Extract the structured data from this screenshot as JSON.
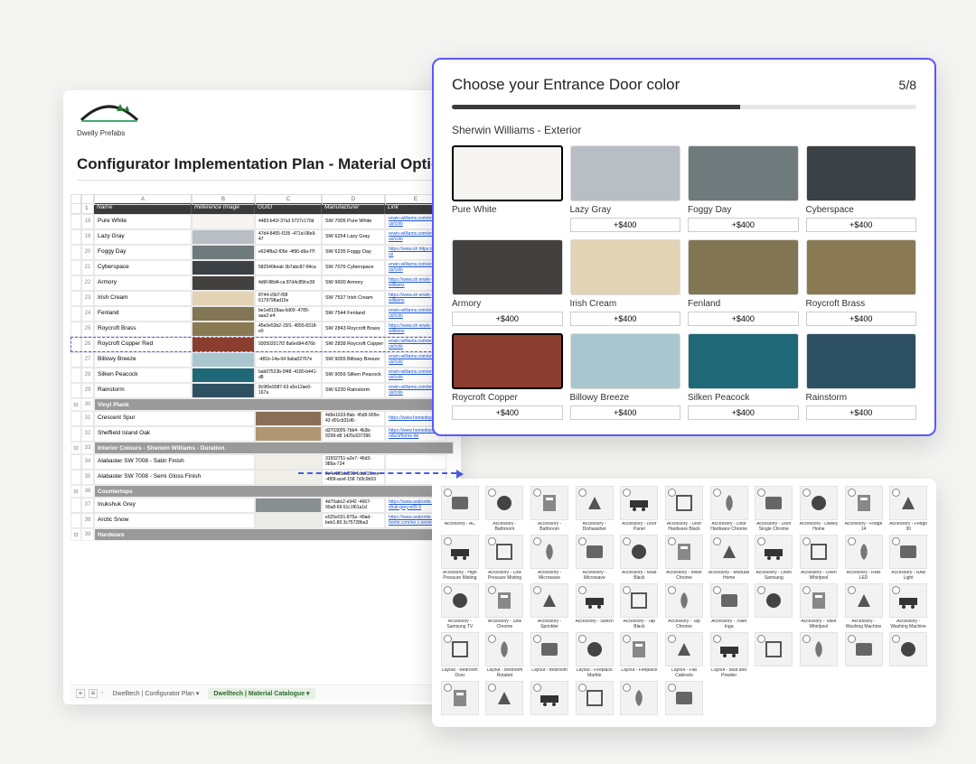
{
  "brand": {
    "name": "Dwelly Prefabs"
  },
  "sheet": {
    "title": "Configurator Implementation Plan - Material Options",
    "col_letters": [
      "",
      "",
      "A",
      "B",
      "C",
      "D",
      "E"
    ],
    "headers": [
      "Name",
      "Reference Image",
      "GUID",
      "Manufacturer",
      "Link"
    ],
    "rows": [
      {
        "rn": "18",
        "name": "Pure White",
        "color": "#f6f5f1",
        "guid": "4483-b41f-37a3\n5727c170d",
        "mfr": "SW 7005 Pure White",
        "link": "erwin-williams.com/en-us/colo"
      },
      {
        "rn": "19",
        "name": "Lazy Gray",
        "color": "#b8bec3",
        "guid": "47d4-8455-f105\n-471d-08e9-47",
        "mfr": "SW 6254 Lazy Gray",
        "link": "erwin-williams.com/en-us/colo"
      },
      {
        "rn": "20",
        "name": "Foggy Day",
        "color": "#6f7a7d",
        "guid": "e624f8a2-f05e\n-4f90-d9a-f7f",
        "mfr": "SW 6235 Foggy Day",
        "link": "https://www.sh\nhttps://en-us"
      },
      {
        "rn": "21",
        "name": "Cyberspace",
        "color": "#3c4146",
        "guid": "582540beab\n3b7abc87-84ca",
        "mfr": "SW 7076 Cyberspace",
        "link": "erwin-williams.com/en-us/colo"
      },
      {
        "rn": "22",
        "name": "Armory",
        "color": "#424140",
        "guid": "4d9f-88d4-ca\n87d4c85fce39",
        "mfr": "SW 9600 Armory",
        "link": "https://www.sh\nerwin-williams"
      },
      {
        "rn": "23",
        "name": "Irish Cream",
        "color": "#e2d3b5",
        "guid": "8744-c5b7-f08\n6179798ad15e",
        "mfr": "SW 7537 Irish Cream",
        "link": "https://www.sh\nerwin-williams"
      },
      {
        "rn": "24",
        "name": "Fenland",
        "color": "#817554",
        "guid": "be1e8128aa-6d09\n-4785-aaa2-e4",
        "mfr": "SW 7544 Fenland",
        "link": "erwin-williams.com/en-us/colo"
      },
      {
        "rn": "25",
        "name": "Roycroft Brass",
        "color": "#8a7a54",
        "guid": "45e0e53b2-15f1-\n4055-8318-e0",
        "mfr": "SW 2843 Roycroft Brass",
        "link": "https://www.sh\nerwin-williams"
      },
      {
        "rn": "26",
        "name": "Roycroft Copper Red",
        "color": "#8b3d2f",
        "guid": "930502017f2\n8a6ed94-876b",
        "mfr": "SW 2838 Roycroft Copper Red",
        "link": "erwin-williams.com/en-us/colo",
        "highlight": true
      },
      {
        "rn": "27",
        "name": "Billowy Breeze",
        "color": "#a9c6ce",
        "guid": "-481b-14a-04\n9aba02767e",
        "mfr": "SW 9055 Billowy Breeze",
        "link": "erwin-williams.com/en-us/colo"
      },
      {
        "rn": "28",
        "name": "Silken Peacock",
        "color": "#1e6877",
        "guid": "bab07523b-5f48\n-4180-b441-d8",
        "mfr": "SW 9059 Silken Peacock",
        "link": "erwin-williams.com/en-us/colo"
      },
      {
        "rn": "29",
        "name": "Rainstorm",
        "color": "#2d5162",
        "guid": "8c9f0e9387-63\na5e12ae0-167a",
        "mfr": "SW 6230 Rainstorm",
        "link": "erwin-williams.com/en-us/colo"
      }
    ],
    "section_vinyl": "Vinyl Plank",
    "vinyl_rows": [
      {
        "rn": "31",
        "name": "Crescent Spur",
        "color": "#8a6f56",
        "guid": "4d9e1633-ffab-\n45d9-905e-43\nd01cb31d6-",
        "link": "https://www.homedepot.ca/pr"
      },
      {
        "rn": "32",
        "name": "Sheffield Island Oak",
        "color": "#b09672",
        "guid": "d3703005-7bb4-\n4b3b-9298-d8\n1425c637396",
        "link": "https://www.homedepot.ca/pr\noduct/home-de"
      }
    ],
    "section_interior": "Interior Colours - Sherwin Williams - Duration",
    "interior_rows": [
      {
        "rn": "34",
        "name": "Alabaster SW 7008 - Satin Finish",
        "color": "#efeee7",
        "guid": "31502751-a2e7-\n46d3-989a-724"
      },
      {
        "rn": "35",
        "name": "Alabaster SW 7008 - Semi Gloss Finish",
        "color": "#efeee7",
        "guid": "9c4e195dd893\n1da015eee-\n-4f09-acef-158\n7d3c9b53"
      }
    ],
    "section_countertops": "Countertops",
    "countertop_rows": [
      {
        "rn": "37",
        "name": "Inukshuk Grey",
        "color": "#898f91",
        "guid": "4d70abc2-e942\n-4667-90a8-69\n61c1f61a1d",
        "link": "https://www.araborite.com/en\nshuk-grey-e05\n6"
      },
      {
        "rn": "38",
        "name": "Arctic Snow",
        "color": "#ecece9",
        "guid": "e025e031-875a\n-49ad-beb1-80\n3c75728ba3",
        "link": "https://www.araborite.com/en\nborite.com/en\nc-snow-e937"
      }
    ],
    "section_hardware": "Hardware",
    "tabs": {
      "add": "+",
      "menu": "≡",
      "tab1": "Dwelltech | Configurator Plan",
      "tab2": "Dwelltech | Material Catalogue"
    }
  },
  "configurator": {
    "title": "Choose your Entrance Door color",
    "step": "5/8",
    "progress_pct": 62,
    "subtitle": "Sherwin Williams - Exterior",
    "swatches": [
      {
        "label": "Pure White",
        "color": "#f6f5f1",
        "price": "",
        "selected": true
      },
      {
        "label": "Lazy Gray",
        "color": "#b8bec3",
        "price": "+$400"
      },
      {
        "label": "Foggy Day",
        "color": "#6f7a7d",
        "price": "+$400"
      },
      {
        "label": "Cyberspace",
        "color": "#3c4146",
        "price": "+$400"
      },
      {
        "label": "Armory",
        "color": "#424140",
        "price": "+$400"
      },
      {
        "label": "Irish Cream",
        "color": "#e2d3b5",
        "price": "+$400"
      },
      {
        "label": "Fenland",
        "color": "#817554",
        "price": "+$400"
      },
      {
        "label": "Roycroft Brass",
        "color": "#8a7a54",
        "price": "+$400"
      },
      {
        "label": "Roycroft Copper",
        "color": "#8b3d2f",
        "price": "+$400",
        "selected": true
      },
      {
        "label": "Billowy Breeze",
        "color": "#a9c6ce",
        "price": "+$400"
      },
      {
        "label": "Silken Peacock",
        "color": "#1e6877",
        "price": "+$400"
      },
      {
        "label": "Rainstorm",
        "color": "#2d5162",
        "price": "+$400"
      }
    ]
  },
  "assets": {
    "items": [
      "Accessory - AC",
      "Accessory - Bathroom Accessory Chrome",
      "Accessory - Bathroom Accessory Matte Black",
      "Accessory - Dishwasher",
      "Accessory - Door Panel",
      "Accessory - Door Hardware Black",
      "Accessory - Door Hardware Chrome",
      "Accessory - Door Single Chrome",
      "Accessory - Dwelly Home",
      "Accessory - Fridge 14",
      "Accessory - Fridge 30",
      "Accessory - High Pressure Misting",
      "Accessory - Low Pressure Misting",
      "Accessory - Microwave Samsung",
      "Accessory - Microwave Whirlpool",
      "Accessory - Must Black",
      "Accessory - Mixer Chrome",
      "Accessory - Modular Home",
      "Accessory - Oven Samsung",
      "Accessory - Oven Whirlpool",
      "Accessory - RAB LED",
      "Accessory - RAB Light",
      "Accessory - Samsung TV",
      "Accessory - Sink Chrome",
      "Accessory - Sprinkler",
      "Accessory - Switch",
      "Accessory - Tap Black",
      "Accessory - Tap Chrome",
      "Accessory - Toilet Inga",
      "",
      "Accessory - Toilet Whirlpool",
      "Accessory - Washing Machine",
      "Accessory - Washing Machine Top",
      "Layout - Bedroom Door",
      "Layout - Bedroom Rotated",
      "Layout - Bedroom",
      "Layout - Fireplace Marble",
      "Layout - Fireplace",
      "Layout - Flat Cabinets",
      "Layout - Mud and Powder",
      "",
      "",
      "",
      "",
      "",
      "",
      "",
      "",
      "",
      ""
    ]
  }
}
